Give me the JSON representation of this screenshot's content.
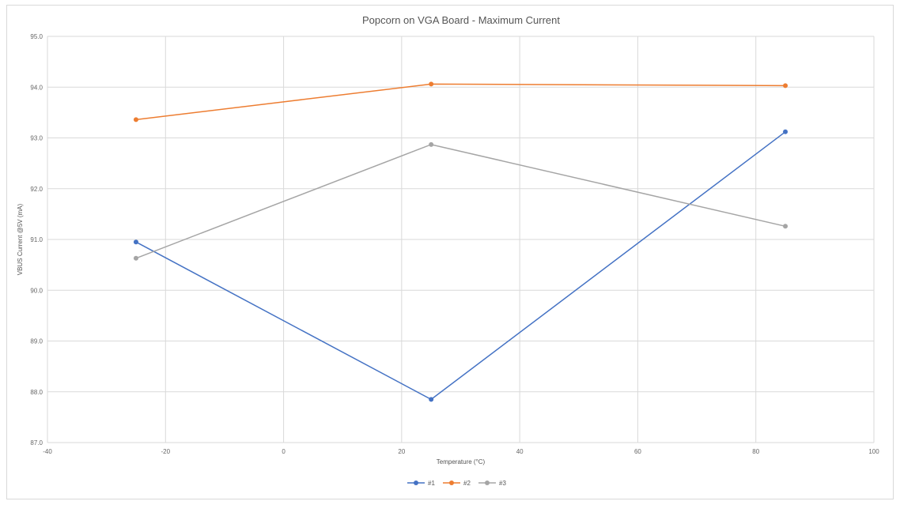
{
  "chart_data": {
    "type": "line",
    "title": "Popcorn on VGA Board - Maximum Current",
    "xlabel": "Temperature (°C)",
    "ylabel": "VBUS Current @5V (mA)",
    "xlim": [
      -40,
      100
    ],
    "ylim": [
      87.0,
      95.0
    ],
    "x_ticks": [
      "-40",
      "-20",
      "0",
      "20",
      "40",
      "60",
      "80",
      "100"
    ],
    "y_ticks": [
      "87.0",
      "88.0",
      "89.0",
      "90.0",
      "91.0",
      "92.0",
      "93.0",
      "94.0",
      "95.0"
    ],
    "grid": true,
    "legend_position": "bottom",
    "x": [
      -25,
      25,
      85
    ],
    "series": [
      {
        "name": "#1",
        "color": "#4472c4",
        "values": [
          90.95,
          87.85,
          93.12
        ]
      },
      {
        "name": "#2",
        "color": "#ed7d31",
        "values": [
          93.36,
          94.06,
          94.03
        ]
      },
      {
        "name": "#3",
        "color": "#a5a5a5",
        "values": [
          90.63,
          92.87,
          91.26
        ]
      }
    ]
  }
}
